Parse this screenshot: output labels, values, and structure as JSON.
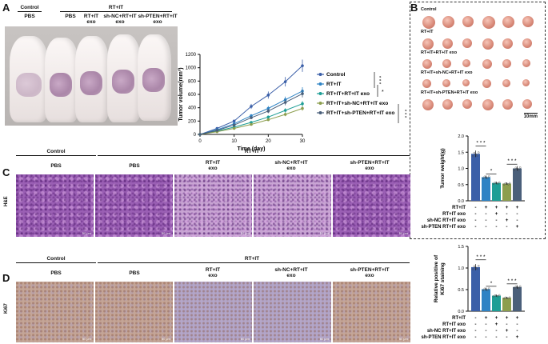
{
  "panels": {
    "a": "A",
    "b": "B",
    "c": "C",
    "d": "D"
  },
  "a_header": {
    "control": "Control",
    "rt_it": "RT+IT",
    "groups": [
      "PBS",
      "PBS",
      "RT+IT\nexo",
      "sh-NC+RT+IT\nexo",
      "sh-PTEN+RT+IT\nexo"
    ]
  },
  "b_photo": {
    "rows": [
      "Control",
      "RT+IT",
      "RT+IT+RT+IT exo",
      "RT+IT+sh-NC+RT+IT exo",
      "RT+IT+sh-PTEN+RT+IT exo"
    ],
    "scale": "10mm"
  },
  "histo": {
    "control": "Control",
    "rt_it": "RT+IT",
    "cols": [
      "PBS",
      "PBS",
      "RT+IT\nexo",
      "sh-NC+RT+IT\nexo",
      "sh-PTEN+RT+IT\nexo"
    ],
    "he_label": "H&E",
    "ki_label": "Ki67",
    "scale": "50 μm"
  },
  "matrix": {
    "rows": [
      "RT+IT",
      "RT+IT exo",
      "sh-NC RT+IT exo",
      "sh-PTEN RT+IT exo"
    ],
    "signs": [
      [
        "-",
        "+",
        "+",
        "+",
        "+"
      ],
      [
        "-",
        "-",
        "+",
        "-",
        "-"
      ],
      [
        "-",
        "-",
        "-",
        "+",
        "-"
      ],
      [
        "-",
        "-",
        "-",
        "-",
        "+"
      ]
    ]
  },
  "colors": {
    "control": "#3b5fa8",
    "rtit": "#2e83c4",
    "exo": "#1e9e96",
    "shnc": "#8c9e4e",
    "shpten": "#4a5f7a"
  },
  "chart_data": [
    {
      "type": "line",
      "xlabel": "Time (day)",
      "ylabel": "Tumor volume(mm³)",
      "x": [
        0,
        5,
        10,
        15,
        20,
        25,
        30
      ],
      "xlim": [
        0,
        30
      ],
      "ylim": [
        0,
        1200
      ],
      "xticks": [
        "0",
        "10",
        "20",
        "30"
      ],
      "yticks": [
        "0",
        "200",
        "400",
        "600",
        "800",
        "1000",
        "1200"
      ],
      "series": [
        {
          "name": "Control",
          "values": [
            0,
            90,
            200,
            420,
            590,
            790,
            1030
          ]
        },
        {
          "name": "RT+IT",
          "values": [
            0,
            70,
            160,
            280,
            390,
            520,
            650
          ]
        },
        {
          "name": "RT+IT+RT+IT exo",
          "values": [
            0,
            50,
            110,
            180,
            260,
            360,
            460
          ]
        },
        {
          "name": "RT+IT+sh-NC+RT+IT exo",
          "values": [
            0,
            40,
            90,
            150,
            220,
            300,
            390
          ]
        },
        {
          "name": "RT+IT+sh-PTEN+RT+IT exo",
          "values": [
            0,
            60,
            140,
            250,
            350,
            480,
            610
          ]
        }
      ],
      "stars": [
        "* * *",
        "*",
        "* * *"
      ],
      "legend": "right"
    },
    {
      "type": "bar",
      "ylabel": "Tumor weight(g)",
      "values": [
        1.45,
        0.73,
        0.55,
        0.53,
        1.0
      ],
      "ylim": [
        0,
        2.0
      ],
      "yticks": [
        "0.0",
        "0.5",
        "1.0",
        "1.5",
        "2.0"
      ],
      "stars": [
        "* * *",
        "*",
        "* * *"
      ]
    },
    {
      "type": "bar",
      "ylabel": "Relative positive of\nKi67 staining",
      "values": [
        1.02,
        0.51,
        0.36,
        0.31,
        0.56
      ],
      "ylim": [
        0,
        1.5
      ],
      "yticks": [
        "0.0",
        "0.5",
        "1.0",
        "1.5"
      ],
      "stars": [
        "* * *",
        "*",
        "* * *"
      ]
    }
  ]
}
